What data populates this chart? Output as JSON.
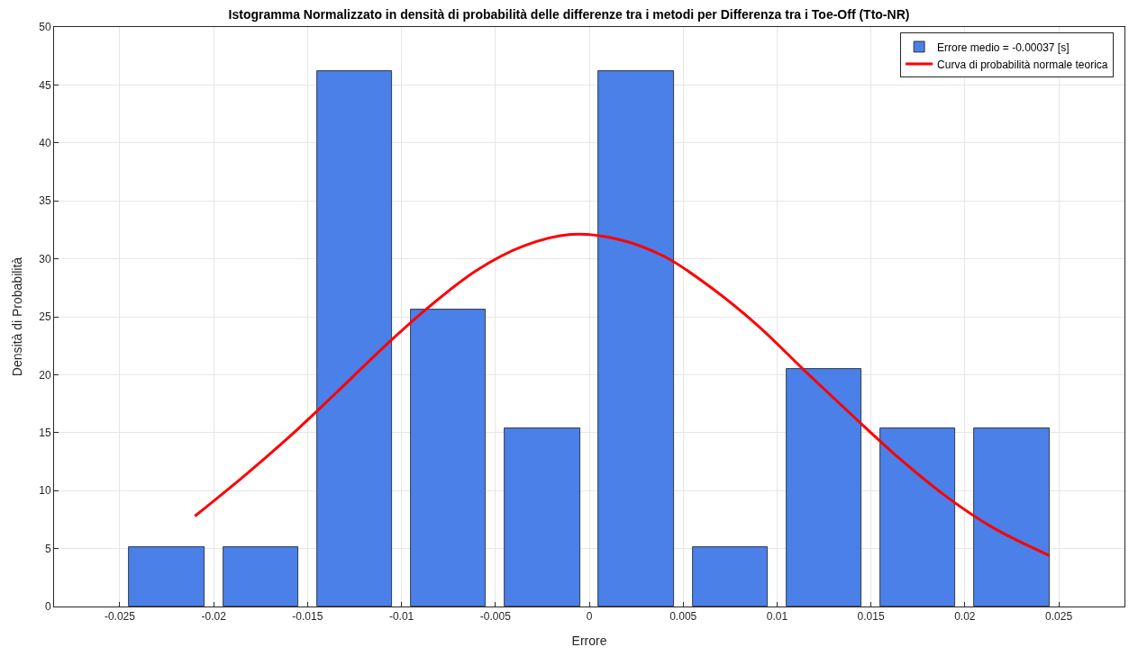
{
  "chart_data": {
    "type": "histogram",
    "title": "Istogramma Normalizzato in densità di probabilità delle differenze tra i metodi per Differenza tra i Toe-Off (Tto-NR)",
    "xlabel": "Errore",
    "ylabel": "Densità di Probabilità",
    "bins": [
      -0.025,
      -0.02,
      -0.015,
      -0.01,
      -0.005,
      0,
      0.005,
      0.01,
      0.015,
      0.02,
      0.025
    ],
    "series": [
      {
        "name": "Errore medio = -0.00037 [s]",
        "color": "#4a80e8",
        "values": [
          5.1,
          5.1,
          46.2,
          25.6,
          15.4,
          46.2,
          5.1,
          20.5,
          15.4,
          15.4
        ]
      },
      {
        "type": "line",
        "name": "Curva di probabilità normale teorica",
        "color": "#ff0000",
        "x": [
          -0.021,
          -0.0185,
          -0.016,
          -0.0135,
          -0.011,
          -0.0085,
          -0.006,
          -0.0035,
          -0.001,
          0.0015,
          0.004,
          0.0065,
          0.009,
          0.0115,
          0.014,
          0.0165,
          0.019,
          0.0215,
          0.0245
        ],
        "values": [
          7.8,
          11.1,
          14.6,
          18.4,
          22.3,
          25.9,
          29.0,
          31.1,
          32.1,
          31.7,
          30.2,
          27.5,
          24.2,
          20.3,
          16.5,
          12.8,
          9.5,
          6.8,
          4.4
        ]
      }
    ],
    "xlim": [
      -0.0285,
      0.0285
    ],
    "xticks": [
      -0.025,
      -0.02,
      -0.015,
      -0.01,
      -0.005,
      0,
      0.005,
      0.01,
      0.015,
      0.02,
      0.025
    ],
    "ylim": [
      0,
      50
    ],
    "yticks": [
      0,
      5,
      10,
      15,
      20,
      25,
      30,
      35,
      40,
      45,
      50
    ],
    "grid": true,
    "legend": "top right"
  }
}
